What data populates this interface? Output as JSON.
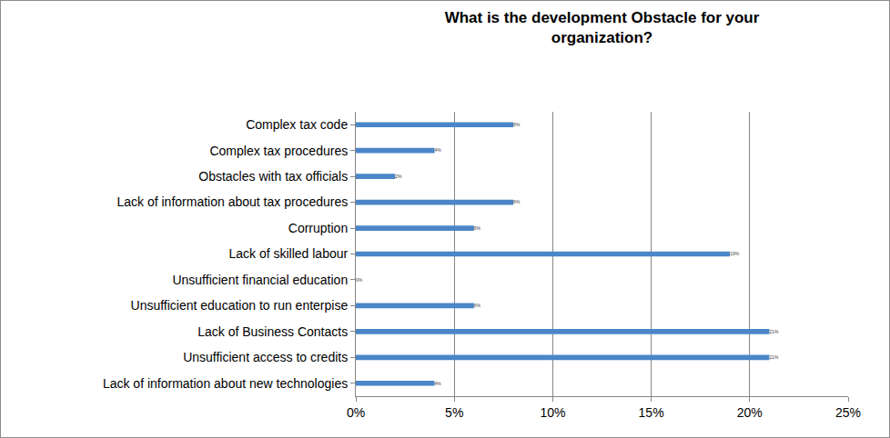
{
  "chart_data": {
    "type": "bar",
    "orientation": "horizontal",
    "title": "What is the development Obstacle for your organization?",
    "categories": [
      "Complex tax code",
      "Complex tax procedures",
      "Obstacles with tax officials",
      "Lack of information about tax procedures",
      "Corruption",
      "Lack of skilled labour",
      "Unsufficient financial education",
      "Unsufficient education to run enterpise",
      "Lack of Business Contacts",
      "Unsufficient access to credits",
      "Lack of information about new technologies"
    ],
    "values": [
      8,
      4,
      2,
      8,
      6,
      19,
      0,
      6,
      21,
      21,
      4
    ],
    "value_labels": [
      "8%",
      "4%",
      "2%",
      "8%",
      "6%",
      "19%",
      "0%",
      "6%",
      "21%",
      "21%",
      "4%"
    ],
    "data_labels": true,
    "color": "#4a86c8",
    "xlim": [
      0,
      25
    ],
    "xticks": [
      {
        "value": 0,
        "label": "0%"
      },
      {
        "value": 5,
        "label": "5%"
      },
      {
        "value": 10,
        "label": "10%"
      },
      {
        "value": 15,
        "label": "15%"
      },
      {
        "value": 20,
        "label": "20%"
      },
      {
        "value": 25,
        "label": "25%"
      }
    ],
    "grid": true
  }
}
